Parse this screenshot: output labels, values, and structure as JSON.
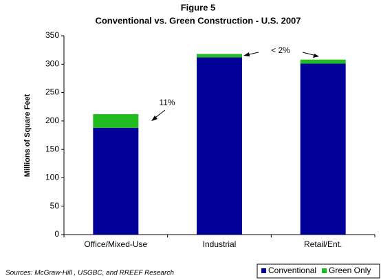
{
  "chart_data": {
    "type": "stacked_bar",
    "title": "Figure 5",
    "subtitle": "Conventional vs. Green Construction - U.S. 2007",
    "y_label": "Millions of Square Feet",
    "source": "Sources: McGraw-Hill , USGBC, and RREEF Research",
    "categories": [
      "Office/Mixed-Use",
      "Industrial",
      "Retail/Ent."
    ],
    "series": [
      {
        "name": "Conventional",
        "color": "#000099",
        "values": [
          188,
          312,
          301
        ]
      },
      {
        "name": "Green Only",
        "color": "#22bb22",
        "values": [
          24,
          6,
          7
        ]
      }
    ],
    "annotations": [
      "11%",
      "< 2%"
    ],
    "ylim": [
      0,
      350
    ],
    "yticks": [
      0,
      50,
      100,
      150,
      200,
      250,
      300,
      350
    ],
    "grid": false,
    "legend": "bottom-right"
  }
}
